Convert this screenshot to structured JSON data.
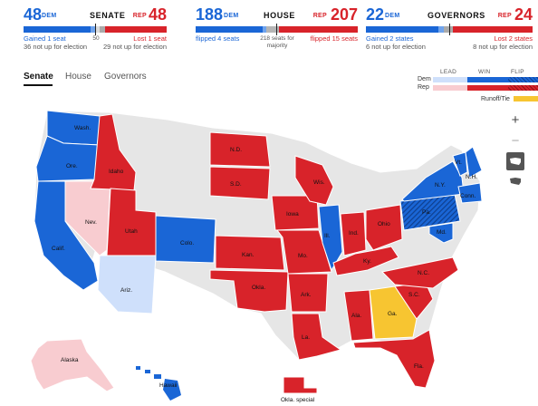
{
  "scoreboard": {
    "senate": {
      "title": "SENATE",
      "dem_count": "48",
      "dem_tag": "DEM",
      "rep_count": "48",
      "rep_tag": "REP",
      "dem_note1": "Gained 1 seat",
      "dem_note2": "36 not up for election",
      "rep_note1": "Lost 1 seat",
      "rep_note2": "29 not up for election",
      "majority": "50"
    },
    "house": {
      "title": "HOUSE",
      "dem_count": "188",
      "dem_tag": "DEM",
      "rep_count": "207",
      "rep_tag": "REP",
      "dem_note": "flipped 4 seats",
      "rep_note": "flipped 15 seats",
      "majority_line1": "218 seats for",
      "majority_line2": "majority"
    },
    "governors": {
      "title": "GOVERNORS",
      "dem_count": "22",
      "dem_tag": "DEM",
      "rep_count": "24",
      "rep_tag": "REP",
      "dem_note1": "Gained 2 states",
      "dem_note2": "6 not up for election",
      "rep_note1": "Lost 2 states",
      "rep_note2": "8 not up for election"
    }
  },
  "tabs": [
    {
      "label": "Senate",
      "active": true
    },
    {
      "label": "House",
      "active": false
    },
    {
      "label": "Governors",
      "active": false
    }
  ],
  "legend": {
    "lead": "LEAD",
    "win": "WIN",
    "flip": "FLIP",
    "dem": "Dem",
    "rep": "Rep",
    "runoff": "Runoff/Tie"
  },
  "controls": {
    "zoom_in": "+",
    "zoom_out": "−"
  },
  "colors": {
    "dem_win": "#1a66d6",
    "dem_lead": "#cfe0fb",
    "rep_win": "#d8232a",
    "rep_lead": "#f8ccd0",
    "runoff": "#f7c531",
    "no_race": "#e6e6e6"
  },
  "states": {
    "wash": "Wash.",
    "ore": "Ore.",
    "calif": "Calif.",
    "nev": "Nev.",
    "idaho": "Idaho",
    "utah": "Utah",
    "ariz": "Ariz.",
    "colo": "Colo.",
    "nd": "N.D.",
    "sd": "S.D.",
    "kan": "Kan.",
    "okla": "Okla.",
    "iowa": "Iowa",
    "mo": "Mo.",
    "ark": "Ark.",
    "la": "La.",
    "wis": "Wis.",
    "ill": "Ill.",
    "ind": "Ind.",
    "ohio": "Ohio",
    "ky": "Ky.",
    "ala": "Ala.",
    "ga": "Ga.",
    "fla": "Fla.",
    "sc": "S.C.",
    "nc": "N.C.",
    "pa": "Pa.",
    "ny": "N.Y.",
    "vt": "Vt.",
    "nh": "N.H.",
    "conn": "Conn.",
    "md": "Md.",
    "alaska": "Alaska",
    "hawaii": "Hawaii",
    "okla_special": "Okla. special"
  }
}
